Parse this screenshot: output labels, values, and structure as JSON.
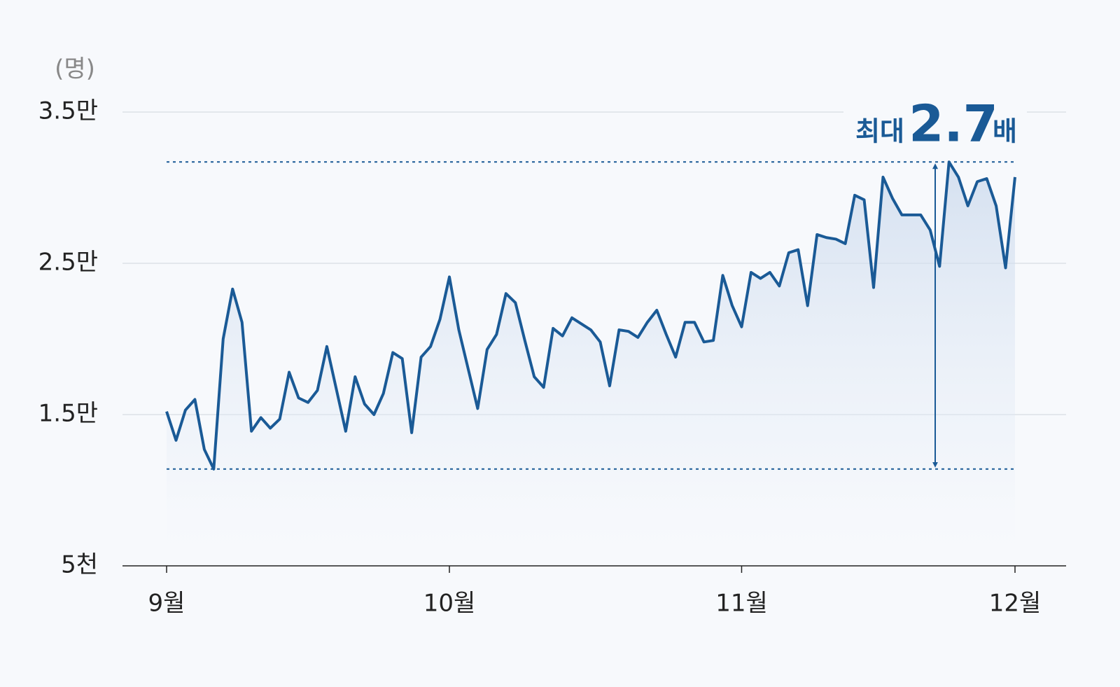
{
  "chart_data": {
    "type": "line",
    "unit_label": "(명)",
    "annotation": {
      "prefix": "최대",
      "value": "2.7",
      "suffix": "배"
    },
    "categories": [
      "9월",
      null,
      null,
      null,
      null,
      null,
      null,
      null,
      null,
      null,
      null,
      null,
      null,
      null,
      null,
      null,
      null,
      null,
      null,
      null,
      null,
      null,
      null,
      null,
      null,
      null,
      null,
      null,
      null,
      null,
      "10월",
      null,
      null,
      null,
      null,
      null,
      null,
      null,
      null,
      null,
      null,
      null,
      null,
      null,
      null,
      null,
      null,
      null,
      null,
      null,
      null,
      null,
      null,
      null,
      null,
      null,
      null,
      null,
      null,
      null,
      null,
      "11월",
      null,
      null,
      null,
      null,
      null,
      null,
      null,
      null,
      null,
      null,
      null,
      null,
      null,
      null,
      null,
      null,
      null,
      null,
      null,
      null,
      null,
      null,
      null,
      null,
      null,
      null,
      null,
      null,
      "12월"
    ],
    "series": [
      {
        "color": "#1a5a96",
        "values": [
          15200,
          13300,
          15300,
          16000,
          12700,
          11400,
          20000,
          23300,
          21100,
          13900,
          14800,
          14100,
          14700,
          17800,
          16100,
          15800,
          16600,
          19500,
          16700,
          13900,
          17500,
          15700,
          15000,
          16400,
          19100,
          18700,
          13800,
          18800,
          19500,
          21300,
          24100,
          20600,
          18000,
          15400,
          19300,
          20300,
          23000,
          22400,
          19900,
          17500,
          16800,
          20700,
          20200,
          21400,
          21000,
          20600,
          19800,
          16900,
          20600,
          20500,
          20100,
          21100,
          21900,
          20300,
          18800,
          21100,
          21100,
          19800,
          19900,
          24200,
          22200,
          20800,
          24400,
          24000,
          24400,
          23500,
          25700,
          25900,
          22200,
          26900,
          26700,
          26600,
          26300,
          29500,
          29200,
          23400,
          30700,
          29300,
          28200,
          28200,
          28200,
          27200,
          24800,
          31700,
          30700,
          28800,
          30400,
          30600,
          28800,
          24700,
          30700
        ]
      }
    ],
    "ylim": [
      5000,
      35000
    ],
    "yticks": [
      {
        "value": 5000,
        "label": "5천"
      },
      {
        "value": 15000,
        "label": "1.5만"
      },
      {
        "value": 25000,
        "label": "2.5만"
      },
      {
        "value": 35000,
        "label": "3.5만"
      }
    ],
    "grid": true
  }
}
